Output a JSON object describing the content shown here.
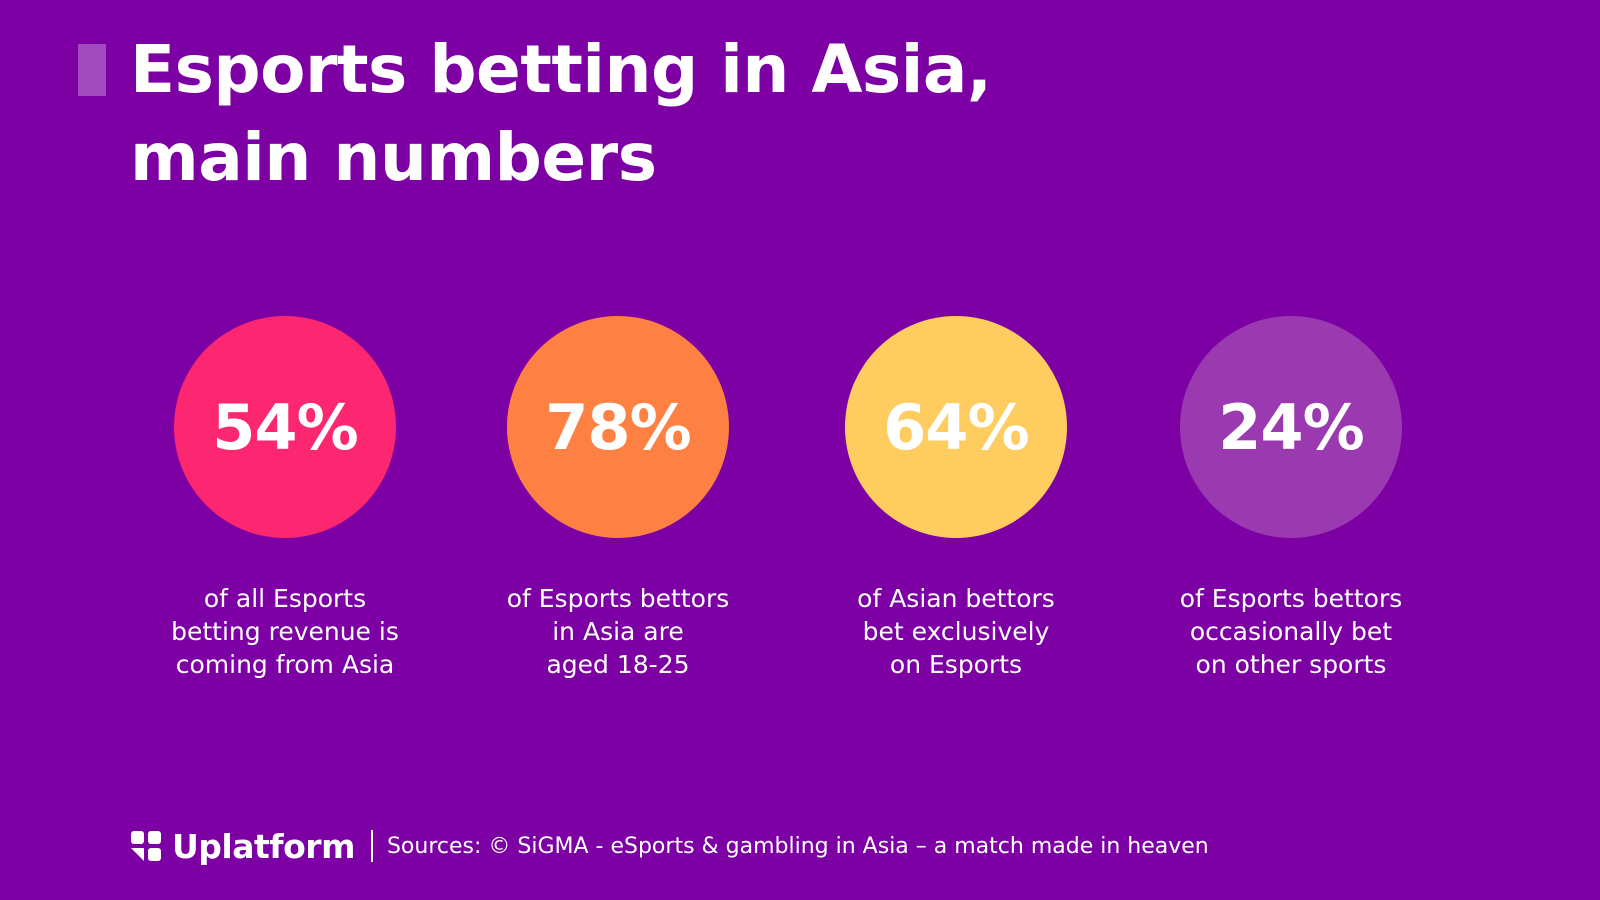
{
  "title": {
    "line1": "Esports betting in Asia,",
    "line2": "main numbers"
  },
  "stats": [
    {
      "value": "54%",
      "color": "#fd2670",
      "caption": [
        "of all Esports",
        "betting revenue is",
        "coming from Asia"
      ]
    },
    {
      "value": "78%",
      "color": "#fe8043",
      "caption": [
        "of Esports bettors",
        "in Asia are",
        "aged 18-25"
      ]
    },
    {
      "value": "64%",
      "color": "#fecc5f",
      "caption": [
        "of Asian bettors",
        "bet exclusively",
        "on Esports"
      ]
    },
    {
      "value": "24%",
      "color": "#9b39b1",
      "caption": [
        "of Esports bettors",
        "occasionally bet",
        "on other sports"
      ]
    }
  ],
  "footer": {
    "logo": "Uplatform",
    "logo_icon": "uplatform-logo-icon",
    "sources": "Sources: © SiGMA - eSports & gambling in Asia – a match made in heaven"
  },
  "colors": {
    "background": "#7d00a4",
    "accent_bar": "#a04bc0"
  }
}
